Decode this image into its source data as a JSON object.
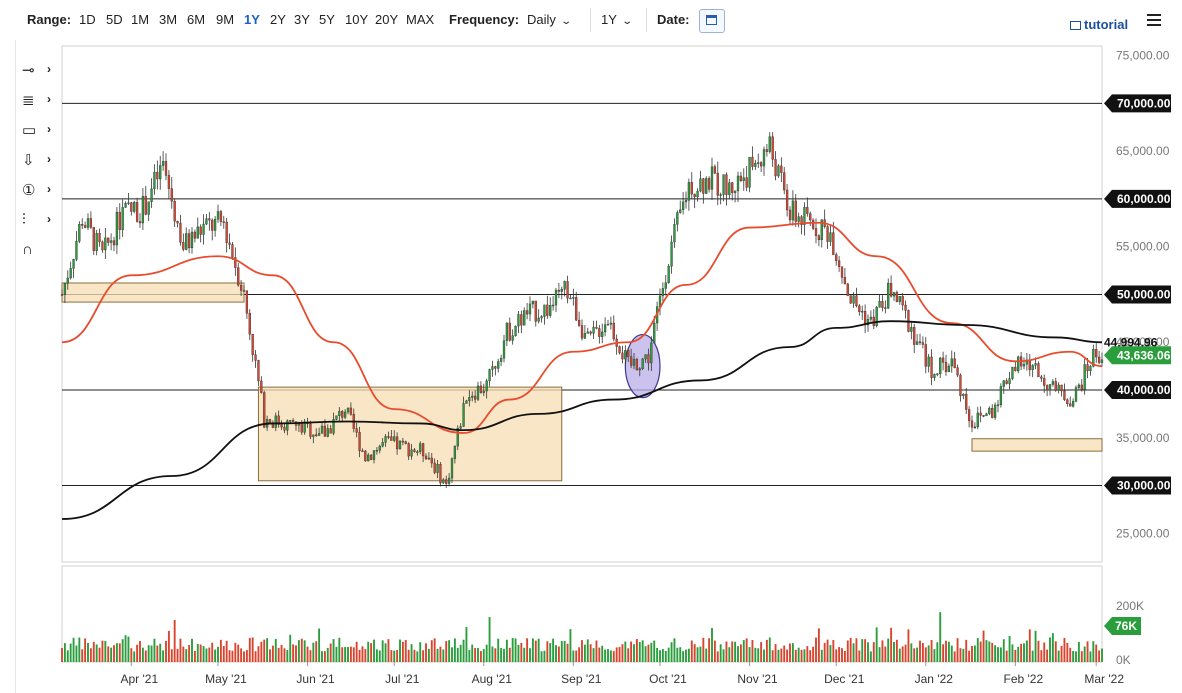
{
  "toolbar": {
    "range_label": "Range:",
    "ranges": [
      "1D",
      "5D",
      "1M",
      "3M",
      "6M",
      "9M",
      "1Y",
      "2Y",
      "3Y",
      "5Y",
      "10Y",
      "20Y",
      "MAX"
    ],
    "active_range": "1Y",
    "frequency_label": "Frequency:",
    "frequency_value": "Daily",
    "period_value": "1Y",
    "date_label": "Date:",
    "tutorial_label": "tutorial"
  },
  "icons": [
    "line-tool-icon",
    "trend-tool-icon",
    "rectangle-tool-icon",
    "arrow-down-tool-icon",
    "number-marker-tool-icon",
    "fib-tool-icon",
    "magnet-icon",
    "calendar-icon",
    "menu-icon",
    "tutorial-icon"
  ],
  "chart_data": {
    "type": "candlestick",
    "x_tick_labels": [
      "Apr '21",
      "May '21",
      "Jun '21",
      "Jul '21",
      "Aug '21",
      "Sep '21",
      "Oct '21",
      "Nov '21",
      "Dec '21",
      "Jan '22",
      "Feb '22",
      "Mar '22"
    ],
    "x_range": [
      "2021-03-08",
      "2022-03-03"
    ],
    "ylim": [
      22000,
      76000
    ],
    "y_tick_labels": [
      "75,000.00",
      "65,000.00",
      "55,000.00",
      "45,000.00",
      "35,000.00",
      "25,000.00"
    ],
    "horizontal_levels": [
      {
        "value": 70000,
        "label": "70,000.00"
      },
      {
        "value": 60000,
        "label": "60,000.00"
      },
      {
        "value": 50000,
        "label": "50,000.00"
      },
      {
        "value": 40000,
        "label": "40,000.00"
      },
      {
        "value": 30000,
        "label": "30,000.00"
      }
    ],
    "last_price": {
      "value": 43636.06,
      "label": "43,636.06",
      "color": "#2a9d3c"
    },
    "ma_200_last": {
      "value": 44994.96,
      "label": "44,994.96"
    },
    "moving_averages": [
      {
        "color": "#e84c2e",
        "dates": [
          "2021-03-08",
          "2021-04-01",
          "2021-05-01",
          "2021-05-20",
          "2021-06-10",
          "2021-07-01",
          "2021-07-25",
          "2021-08-10",
          "2021-09-01",
          "2021-09-20",
          "2021-10-10",
          "2021-11-01",
          "2021-11-25",
          "2021-12-15",
          "2022-01-10",
          "2022-02-01",
          "2022-02-20",
          "2022-03-03"
        ],
        "values": [
          45000,
          52000,
          54000,
          52000,
          45000,
          38000,
          35500,
          39000,
          44000,
          45000,
          51000,
          57000,
          57500,
          54000,
          47000,
          43000,
          44000,
          42500
        ]
      },
      {
        "color": "#111111",
        "dates": [
          "2021-03-08",
          "2021-04-15",
          "2021-05-20",
          "2021-06-15",
          "2021-07-10",
          "2021-07-25",
          "2021-08-20",
          "2021-09-15",
          "2021-10-15",
          "2021-11-15",
          "2021-12-01",
          "2021-12-20",
          "2022-01-15",
          "2022-02-15",
          "2022-03-03"
        ],
        "values": [
          26500,
          31000,
          36500,
          36700,
          36500,
          35800,
          37500,
          39000,
          41000,
          44500,
          46500,
          47200,
          46800,
          45500,
          44990
        ]
      }
    ],
    "candles": [
      {
        "d": "2021-03-08",
        "c": 50000
      },
      {
        "d": "2021-03-15",
        "c": 58000
      },
      {
        "d": "2021-03-22",
        "c": 54000
      },
      {
        "d": "2021-03-29",
        "c": 58500
      },
      {
        "d": "2021-04-05",
        "c": 59000
      },
      {
        "d": "2021-04-12",
        "c": 63500
      },
      {
        "d": "2021-04-19",
        "c": 55000
      },
      {
        "d": "2021-04-26",
        "c": 57000
      },
      {
        "d": "2021-05-03",
        "c": 57500
      },
      {
        "d": "2021-05-10",
        "c": 50000
      },
      {
        "d": "2021-05-17",
        "c": 37000
      },
      {
        "d": "2021-05-24",
        "c": 36500
      },
      {
        "d": "2021-05-31",
        "c": 36000
      },
      {
        "d": "2021-06-07",
        "c": 35500
      },
      {
        "d": "2021-06-14",
        "c": 38000
      },
      {
        "d": "2021-06-21",
        "c": 33000
      },
      {
        "d": "2021-06-28",
        "c": 34500
      },
      {
        "d": "2021-07-05",
        "c": 34000
      },
      {
        "d": "2021-07-12",
        "c": 33500
      },
      {
        "d": "2021-07-19",
        "c": 30000
      },
      {
        "d": "2021-07-26",
        "c": 39500
      },
      {
        "d": "2021-08-02",
        "c": 40500
      },
      {
        "d": "2021-08-09",
        "c": 46000
      },
      {
        "d": "2021-08-16",
        "c": 48000
      },
      {
        "d": "2021-08-23",
        "c": 48500
      },
      {
        "d": "2021-08-30",
        "c": 50500
      },
      {
        "d": "2021-09-06",
        "c": 45000
      },
      {
        "d": "2021-09-13",
        "c": 47500
      },
      {
        "d": "2021-09-20",
        "c": 42500
      },
      {
        "d": "2021-09-27",
        "c": 43500
      },
      {
        "d": "2021-10-04",
        "c": 54000
      },
      {
        "d": "2021-10-11",
        "c": 61500
      },
      {
        "d": "2021-10-18",
        "c": 62000
      },
      {
        "d": "2021-10-25",
        "c": 61000
      },
      {
        "d": "2021-11-01",
        "c": 63000
      },
      {
        "d": "2021-11-08",
        "c": 65500
      },
      {
        "d": "2021-11-15",
        "c": 58500
      },
      {
        "d": "2021-11-22",
        "c": 57500
      },
      {
        "d": "2021-11-29",
        "c": 56500
      },
      {
        "d": "2021-12-06",
        "c": 49500
      },
      {
        "d": "2021-12-13",
        "c": 47000
      },
      {
        "d": "2021-12-20",
        "c": 50500
      },
      {
        "d": "2021-12-27",
        "c": 46500
      },
      {
        "d": "2022-01-03",
        "c": 42000
      },
      {
        "d": "2022-01-10",
        "c": 43000
      },
      {
        "d": "2022-01-17",
        "c": 36500
      },
      {
        "d": "2022-01-24",
        "c": 38000
      },
      {
        "d": "2022-01-31",
        "c": 42500
      },
      {
        "d": "2022-02-07",
        "c": 42500
      },
      {
        "d": "2022-02-14",
        "c": 40000
      },
      {
        "d": "2022-02-21",
        "c": 39000
      },
      {
        "d": "2022-02-28",
        "c": 43636
      }
    ],
    "annotations": [
      {
        "type": "rect",
        "x0": "2021-03-08",
        "x1": "2021-05-10",
        "y0": 49200,
        "y1": 51200
      },
      {
        "type": "rect",
        "x0": "2021-05-15",
        "x1": "2021-08-28",
        "y0": 30500,
        "y1": 40300
      },
      {
        "type": "ellipse",
        "cx": "2021-09-25",
        "cy": 42500,
        "rx_days": 6,
        "ry": 3300
      },
      {
        "type": "rect",
        "x0": "2022-01-17",
        "x1": "2022-03-03",
        "y0": 33600,
        "y1": 34900
      }
    ],
    "volume": {
      "y_tick_labels": [
        "200K",
        "0K"
      ],
      "last_label": "76K",
      "max": 250000
    }
  }
}
